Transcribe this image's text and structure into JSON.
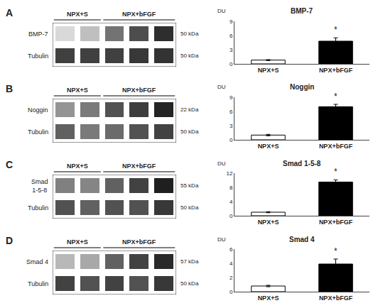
{
  "chart_data": [
    {
      "type": "heatmap",
      "title": "A",
      "tick_labels": false,
      "grid": false,
      "zlim": [
        0,
        1
      ],
      "series": [
        {
          "name": "BMP-7",
          "values": [
            0.15,
            0.25,
            0.55,
            0.7,
            0.82
          ]
        },
        {
          "name": "Tubulin",
          "values": [
            0.75,
            0.75,
            0.75,
            0.78,
            0.8
          ]
        }
      ],
      "annotations": [
        "NPX+S",
        "NPX+bFGF",
        "50 kDa",
        "50 kDa"
      ]
    },
    {
      "type": "heatmap",
      "title": "B",
      "tick_labels": false,
      "grid": false,
      "zlim": [
        0,
        1
      ],
      "series": [
        {
          "name": "Noggin",
          "values": [
            0.42,
            0.52,
            0.68,
            0.76,
            0.86
          ]
        },
        {
          "name": "Tubulin",
          "values": [
            0.62,
            0.52,
            0.58,
            0.68,
            0.74
          ]
        }
      ],
      "annotations": [
        "NPX+S",
        "NPX+bFGF",
        "22 kDa",
        "50 kDa"
      ]
    },
    {
      "type": "heatmap",
      "title": "C",
      "tick_labels": false,
      "grid": false,
      "zlim": [
        0,
        1
      ],
      "series": [
        {
          "name": "Smad\n1-5-8",
          "values": [
            0.5,
            0.48,
            0.62,
            0.74,
            0.88
          ]
        },
        {
          "name": "Tubulin",
          "values": [
            0.68,
            0.62,
            0.68,
            0.68,
            0.78
          ]
        }
      ],
      "annotations": [
        "NPX+S",
        "NPX+bFGF",
        "55 kDa",
        "50 kDa"
      ]
    },
    {
      "type": "heatmap",
      "title": "D",
      "tick_labels": false,
      "grid": false,
      "zlim": [
        0,
        1
      ],
      "series": [
        {
          "name": "Smad 4",
          "values": [
            0.28,
            0.34,
            0.62,
            0.74,
            0.84
          ]
        },
        {
          "name": "Tubulin",
          "values": [
            0.74,
            0.68,
            0.74,
            0.68,
            0.78
          ]
        }
      ],
      "annotations": [
        "NPX+S",
        "NPX+bFGF",
        "57 kDa",
        "50 kDa"
      ]
    },
    {
      "type": "bar",
      "title": "BMP-7",
      "ylabel": "DU",
      "categories": [
        "NPX+S",
        "NPX+bFGF"
      ],
      "values": [
        0.8,
        4.8
      ],
      "errors": [
        0.1,
        0.7
      ],
      "colors": [
        "white",
        "black"
      ],
      "ylim": [
        0,
        9
      ],
      "yticks": [
        0,
        3,
        6,
        9
      ],
      "grid": false,
      "annotations": [
        "*"
      ]
    },
    {
      "type": "bar",
      "title": "Noggin",
      "ylabel": "DU",
      "categories": [
        "NPX+S",
        "NPX+bFGF"
      ],
      "values": [
        1.0,
        7.0
      ],
      "errors": [
        0.15,
        0.5
      ],
      "colors": [
        "white",
        "black"
      ],
      "ylim": [
        0,
        9
      ],
      "yticks": [
        0,
        3,
        6,
        9
      ],
      "grid": false,
      "annotations": [
        "*"
      ]
    },
    {
      "type": "bar",
      "title": "Smad 1-5-8",
      "ylabel": "DU",
      "categories": [
        "NPX+S",
        "NPX+bFGF"
      ],
      "values": [
        1.0,
        9.5
      ],
      "errors": [
        0.15,
        0.6
      ],
      "colors": [
        "white",
        "black"
      ],
      "ylim": [
        0,
        12
      ],
      "yticks": [
        0,
        4,
        8,
        12
      ],
      "grid": false,
      "annotations": [
        "*"
      ]
    },
    {
      "type": "bar",
      "title": "Smad 4",
      "ylabel": "DU",
      "categories": [
        "NPX+S",
        "NPX+bFGF"
      ],
      "values": [
        0.8,
        3.9
      ],
      "errors": [
        0.1,
        0.7
      ],
      "colors": [
        "white",
        "black"
      ],
      "ylim": [
        0,
        6
      ],
      "yticks": [
        0,
        2,
        4,
        6
      ],
      "grid": false,
      "annotations": [
        "*"
      ]
    }
  ]
}
